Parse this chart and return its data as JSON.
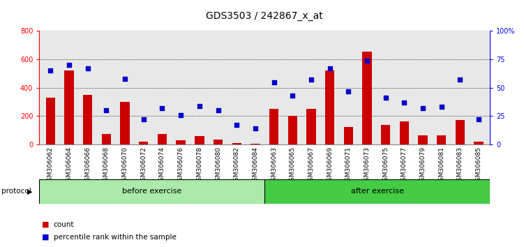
{
  "title": "GDS3503 / 242867_x_at",
  "categories": [
    "GSM306062",
    "GSM306064",
    "GSM306066",
    "GSM306068",
    "GSM306070",
    "GSM306072",
    "GSM306074",
    "GSM306076",
    "GSM306078",
    "GSM306080",
    "GSM306082",
    "GSM306084",
    "GSM306063",
    "GSM306065",
    "GSM306067",
    "GSM306069",
    "GSM306071",
    "GSM306073",
    "GSM306075",
    "GSM306077",
    "GSM306079",
    "GSM306081",
    "GSM306083",
    "GSM306085"
  ],
  "bar_values": [
    330,
    520,
    350,
    75,
    300,
    20,
    75,
    30,
    60,
    35,
    10,
    5,
    250,
    200,
    250,
    520,
    125,
    655,
    140,
    165,
    65,
    65,
    170,
    20
  ],
  "dot_values_pct": [
    65,
    70,
    67,
    30,
    58,
    22,
    32,
    26,
    34,
    30,
    17,
    14,
    55,
    43,
    57,
    67,
    47,
    74,
    41,
    37,
    32,
    33,
    57,
    22
  ],
  "before_exercise_count": 12,
  "after_exercise_count": 12,
  "bar_color": "#cc0000",
  "dot_color": "#0000cc",
  "before_bg": "#aaeaaa",
  "after_bg": "#44cc44",
  "axis_bg": "#e8e8e8",
  "ylim_left": [
    0,
    800
  ],
  "ylim_right": [
    0,
    100
  ],
  "yticks_left": [
    0,
    200,
    400,
    600,
    800
  ],
  "yticks_right": [
    0,
    25,
    50,
    75,
    100
  ],
  "grid_values": [
    200,
    400,
    600
  ],
  "title_fontsize": 10,
  "tick_fontsize": 6.5,
  "legend_count_label": "count",
  "legend_pct_label": "percentile rank within the sample",
  "protocol_label": "protocol",
  "before_label": "before exercise",
  "after_label": "after exercise"
}
